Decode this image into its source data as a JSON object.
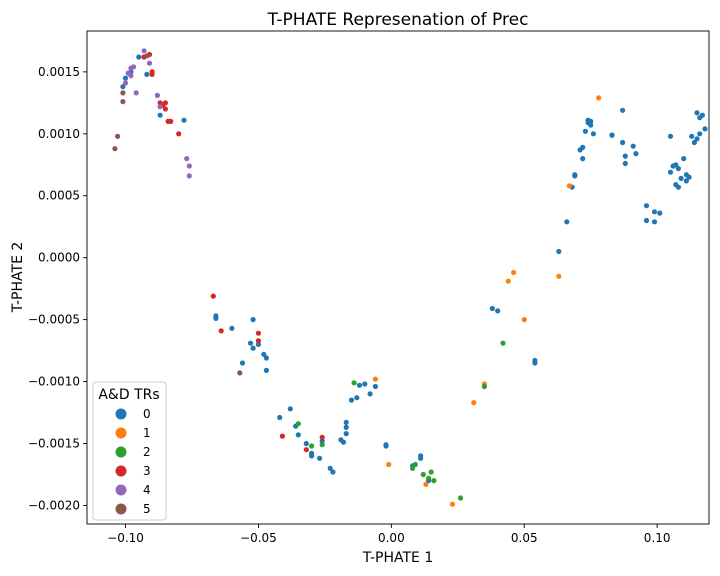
{
  "chart_data": {
    "type": "scatter",
    "title": "T-PHATE Represenation of Prec",
    "xlabel": "T-PHATE 1",
    "ylabel": "T-PHATE 2",
    "xlim": [
      -0.1145,
      0.1195
    ],
    "ylim": [
      -0.00215,
      0.00183
    ],
    "x_ticks": [
      -0.1,
      -0.05,
      0.0,
      0.05,
      0.1
    ],
    "x_tick_labels": [
      "−0.10",
      "−0.05",
      "0.00",
      "0.05",
      "0.10"
    ],
    "y_ticks": [
      0.0015,
      0.001,
      0.0005,
      0.0,
      -0.0005,
      -0.001,
      -0.0015,
      -0.002
    ],
    "y_tick_labels": [
      "0.0015",
      "0.0010",
      "0.0005",
      "0.0000",
      "−0.0005",
      "−0.0010",
      "−0.0015",
      "−0.0020"
    ],
    "grid": false,
    "legend": {
      "title": "A&D TRs",
      "position": "lower-left"
    },
    "series": [
      {
        "name": "0",
        "color": "#1f77b4",
        "points": [
          [
            -0.101,
            0.00138
          ],
          [
            -0.1,
            0.00145
          ],
          [
            -0.098,
            0.0015
          ],
          [
            -0.095,
            0.00162
          ],
          [
            -0.092,
            0.00148
          ],
          [
            -0.087,
            0.00115
          ],
          [
            -0.078,
            0.00111
          ],
          [
            -0.066,
            -0.00047
          ],
          [
            -0.066,
            -0.00049
          ],
          [
            -0.06,
            -0.00057
          ],
          [
            -0.053,
            -0.00069
          ],
          [
            -0.052,
            -0.00073
          ],
          [
            -0.052,
            -0.0005
          ],
          [
            -0.05,
            -0.0007
          ],
          [
            -0.056,
            -0.00085
          ],
          [
            -0.048,
            -0.00078
          ],
          [
            -0.047,
            -0.00081
          ],
          [
            -0.047,
            -0.00091
          ],
          [
            -0.042,
            -0.00129
          ],
          [
            -0.038,
            -0.00122
          ],
          [
            -0.036,
            -0.00136
          ],
          [
            -0.035,
            -0.00143
          ],
          [
            -0.032,
            -0.0015
          ],
          [
            -0.03,
            -0.00158
          ],
          [
            -0.03,
            -0.0016
          ],
          [
            -0.027,
            -0.00162
          ],
          [
            -0.026,
            -0.00148
          ],
          [
            -0.023,
            -0.0017
          ],
          [
            -0.022,
            -0.00173
          ],
          [
            -0.019,
            -0.00147
          ],
          [
            -0.018,
            -0.00149
          ],
          [
            -0.017,
            -0.00142
          ],
          [
            -0.017,
            -0.00137
          ],
          [
            -0.017,
            -0.00133
          ],
          [
            -0.015,
            -0.00115
          ],
          [
            -0.013,
            -0.00113
          ],
          [
            -0.012,
            -0.00103
          ],
          [
            -0.01,
            -0.00102
          ],
          [
            -0.008,
            -0.0011
          ],
          [
            -0.006,
            -0.00104
          ],
          [
            -0.002,
            -0.00151
          ],
          [
            -0.002,
            -0.00152
          ],
          [
            0.008,
            -0.00168
          ],
          [
            0.011,
            -0.0016
          ],
          [
            0.011,
            -0.00162
          ],
          [
            0.014,
            -0.0018
          ],
          [
            0.038,
            -0.00041
          ],
          [
            0.04,
            -0.00043
          ],
          [
            0.054,
            -0.00085
          ],
          [
            0.054,
            -0.00083
          ],
          [
            0.063,
            5e-05
          ],
          [
            0.066,
            0.00029
          ],
          [
            0.068,
            0.00057
          ],
          [
            0.069,
            0.00066
          ],
          [
            0.069,
            0.00067
          ],
          [
            0.071,
            0.00087
          ],
          [
            0.072,
            0.00089
          ],
          [
            0.073,
            0.00102
          ],
          [
            0.072,
            0.0008
          ],
          [
            0.074,
            0.00109
          ],
          [
            0.074,
            0.00111
          ],
          [
            0.075,
            0.0011
          ],
          [
            0.075,
            0.00107
          ],
          [
            0.076,
            0.001
          ],
          [
            0.083,
            0.00099
          ],
          [
            0.083,
            0.00099
          ],
          [
            0.087,
            0.00119
          ],
          [
            0.087,
            0.00093
          ],
          [
            0.088,
            0.00082
          ],
          [
            0.088,
            0.00076
          ],
          [
            0.091,
            0.0009
          ],
          [
            0.092,
            0.00084
          ],
          [
            0.096,
            0.00042
          ],
          [
            0.096,
            0.0003
          ],
          [
            0.099,
            0.00037
          ],
          [
            0.099,
            0.00029
          ],
          [
            0.101,
            0.00036
          ],
          [
            0.105,
            0.00098
          ],
          [
            0.105,
            0.00069
          ],
          [
            0.106,
            0.00074
          ],
          [
            0.107,
            0.00075
          ],
          [
            0.107,
            0.00059
          ],
          [
            0.108,
            0.00072
          ],
          [
            0.108,
            0.00057
          ],
          [
            0.109,
            0.00064
          ],
          [
            0.11,
            0.0008
          ],
          [
            0.111,
            0.00062
          ],
          [
            0.111,
            0.00067
          ],
          [
            0.112,
            0.00065
          ],
          [
            0.113,
            0.00098
          ],
          [
            0.114,
            0.00093
          ],
          [
            0.115,
            0.00117
          ],
          [
            0.116,
            0.001
          ],
          [
            0.117,
            0.00115
          ],
          [
            0.118,
            0.00104
          ],
          [
            0.116,
            0.00113
          ],
          [
            0.115,
            0.00096
          ]
        ]
      },
      {
        "name": "1",
        "color": "#ff7f0e",
        "points": [
          [
            -0.006,
            -0.00098
          ],
          [
            -0.001,
            -0.00167
          ],
          [
            0.013,
            -0.00183
          ],
          [
            0.023,
            -0.00199
          ],
          [
            0.031,
            -0.00117
          ],
          [
            0.035,
            -0.00102
          ],
          [
            0.044,
            -0.00019
          ],
          [
            0.046,
            -0.00012
          ],
          [
            0.05,
            -0.0005
          ],
          [
            0.063,
            -0.00015
          ],
          [
            0.067,
            0.00058
          ],
          [
            0.078,
            0.00129
          ]
        ]
      },
      {
        "name": "2",
        "color": "#2ca02c",
        "points": [
          [
            -0.035,
            -0.00134
          ],
          [
            -0.03,
            -0.00152
          ],
          [
            -0.026,
            -0.00151
          ],
          [
            -0.014,
            -0.00101
          ],
          [
            0.008,
            -0.0017
          ],
          [
            0.009,
            -0.00167
          ],
          [
            0.012,
            -0.00175
          ],
          [
            0.014,
            -0.00178
          ],
          [
            0.015,
            -0.00173
          ],
          [
            0.016,
            -0.0018
          ],
          [
            0.026,
            -0.00194
          ],
          [
            0.035,
            -0.00104
          ],
          [
            0.042,
            -0.00069
          ]
        ]
      },
      {
        "name": "3",
        "color": "#d62728",
        "points": [
          [
            -0.093,
            0.00162
          ],
          [
            -0.091,
            0.00164
          ],
          [
            -0.09,
            0.0015
          ],
          [
            -0.09,
            0.00148
          ],
          [
            -0.087,
            0.00125
          ],
          [
            -0.086,
            0.00123
          ],
          [
            -0.085,
            0.00125
          ],
          [
            -0.085,
            0.0012
          ],
          [
            -0.084,
            0.0011
          ],
          [
            -0.083,
            0.0011
          ],
          [
            -0.08,
            0.001
          ],
          [
            -0.067,
            -0.00031
          ],
          [
            -0.064,
            -0.00059
          ],
          [
            -0.05,
            -0.00061
          ],
          [
            -0.05,
            -0.00067
          ],
          [
            -0.041,
            -0.00144
          ],
          [
            -0.032,
            -0.00155
          ],
          [
            -0.026,
            -0.00145
          ]
        ]
      },
      {
        "name": "4",
        "color": "#9467bd",
        "points": [
          [
            -0.1,
            0.00141
          ],
          [
            -0.099,
            0.00149
          ],
          [
            -0.098,
            0.00153
          ],
          [
            -0.098,
            0.00147
          ],
          [
            -0.097,
            0.00154
          ],
          [
            -0.096,
            0.00133
          ],
          [
            -0.093,
            0.00167
          ],
          [
            -0.091,
            0.00157
          ],
          [
            -0.088,
            0.00131
          ],
          [
            -0.087,
            0.00122
          ],
          [
            -0.077,
            0.0008
          ],
          [
            -0.076,
            0.00074
          ],
          [
            -0.076,
            0.00066
          ]
        ]
      },
      {
        "name": "5",
        "color": "#8c564b",
        "points": [
          [
            -0.104,
            0.00088
          ],
          [
            -0.103,
            0.00098
          ],
          [
            -0.101,
            0.00126
          ],
          [
            -0.101,
            0.00133
          ],
          [
            -0.092,
            0.00163
          ],
          [
            -0.057,
            -0.00093
          ]
        ]
      }
    ]
  }
}
